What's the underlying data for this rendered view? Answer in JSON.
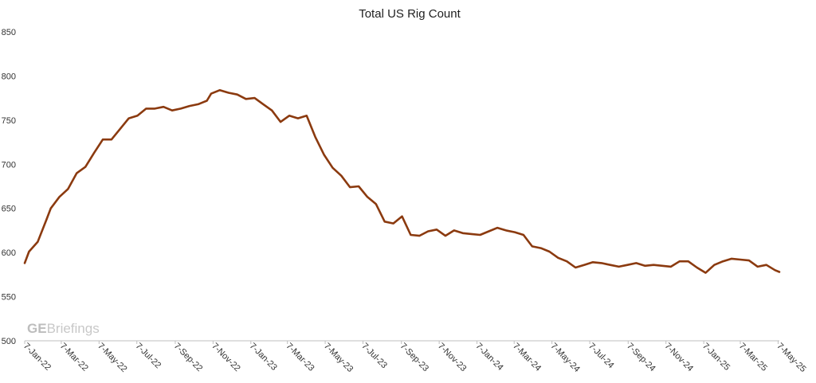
{
  "chart_data": {
    "type": "line",
    "title": "Total US Rig Count",
    "xlabel": "",
    "ylabel": "",
    "ylim": [
      500,
      850
    ],
    "yticks": [
      "850",
      "800",
      "750",
      "700",
      "650",
      "600",
      "550",
      "500"
    ],
    "xlim": [
      "2022-01-07",
      "2025-05-09"
    ],
    "xtick_labels": [
      "7-Jan-22",
      "7-Mar-22",
      "7-May-22",
      "7-Jul-22",
      "7-Sep-22",
      "7-Nov-22",
      "7-Jan-23",
      "7-Mar-23",
      "7-May-23",
      "7-Jul-23",
      "7-Sep-23",
      "7-Nov-23",
      "7-Jan-24",
      "7-Mar-24",
      "7-May-24",
      "7-Jul-24",
      "7-Sep-24",
      "7-Nov-24",
      "7-Jan-25",
      "7-Mar-25",
      "7-May-25"
    ],
    "grid": false,
    "legend": "none",
    "series": [
      {
        "color": "#8B3A0F",
        "x": [
          "2022-01-07",
          "2022-01-14",
          "2022-01-28",
          "2022-02-11",
          "2022-02-18",
          "2022-03-04",
          "2022-03-18",
          "2022-04-01",
          "2022-04-15",
          "2022-04-29",
          "2022-05-13",
          "2022-05-27",
          "2022-06-10",
          "2022-06-24",
          "2022-07-08",
          "2022-07-22",
          "2022-08-05",
          "2022-08-19",
          "2022-09-02",
          "2022-09-16",
          "2022-09-30",
          "2022-10-14",
          "2022-10-28",
          "2022-11-04",
          "2022-11-18",
          "2022-12-02",
          "2022-12-16",
          "2022-12-30",
          "2023-01-13",
          "2023-01-27",
          "2023-02-10",
          "2023-02-24",
          "2023-03-10",
          "2023-03-24",
          "2023-04-07",
          "2023-04-21",
          "2023-05-05",
          "2023-05-19",
          "2023-06-02",
          "2023-06-16",
          "2023-06-30",
          "2023-07-14",
          "2023-07-28",
          "2023-08-11",
          "2023-08-25",
          "2023-09-08",
          "2023-09-22",
          "2023-10-06",
          "2023-10-20",
          "2023-11-03",
          "2023-11-17",
          "2023-12-01",
          "2023-12-15",
          "2023-12-29",
          "2024-01-12",
          "2024-01-26",
          "2024-02-09",
          "2024-02-23",
          "2024-03-08",
          "2024-03-22",
          "2024-04-05",
          "2024-04-19",
          "2024-05-03",
          "2024-05-17",
          "2024-05-31",
          "2024-06-14",
          "2024-06-28",
          "2024-07-12",
          "2024-07-26",
          "2024-08-09",
          "2024-08-23",
          "2024-09-06",
          "2024-09-20",
          "2024-10-04",
          "2024-10-18",
          "2024-11-01",
          "2024-11-15",
          "2024-11-29",
          "2024-12-13",
          "2024-12-27",
          "2025-01-10",
          "2025-01-24",
          "2025-02-07",
          "2025-02-21",
          "2025-03-07",
          "2025-03-21",
          "2025-04-04",
          "2025-04-18",
          "2025-05-02",
          "2025-05-09"
        ],
        "y": [
          588,
          601,
          612,
          637,
          650,
          663,
          672,
          690,
          697,
          713,
          728,
          728,
          740,
          752,
          755,
          763,
          763,
          765,
          761,
          763,
          766,
          768,
          772,
          780,
          784,
          781,
          779,
          774,
          775,
          768,
          761,
          748,
          755,
          752,
          755,
          731,
          711,
          696,
          687,
          674,
          675,
          663,
          655,
          635,
          633,
          641,
          620,
          619,
          624,
          626,
          619,
          625,
          622,
          621,
          620,
          624,
          628,
          625,
          623,
          620,
          607,
          605,
          601,
          594,
          590,
          583,
          586,
          589,
          588,
          586,
          584,
          586,
          588,
          585,
          586,
          585,
          584,
          590,
          590,
          583,
          577,
          586,
          590,
          593,
          592,
          591,
          584,
          586,
          580,
          578
        ]
      }
    ]
  },
  "watermark": {
    "bold": "GE",
    "regular": "Briefings"
  }
}
